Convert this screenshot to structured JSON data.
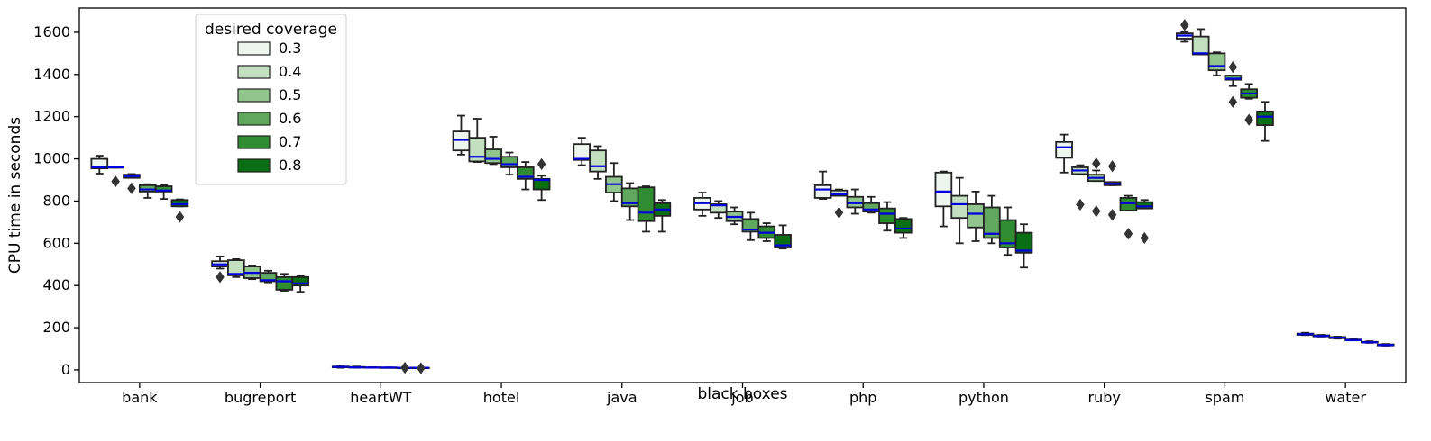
{
  "chart_data": {
    "type": "box",
    "xlabel": "black boxes",
    "ylabel": "CPU time in seconds",
    "ylim": [
      -60,
      1715
    ],
    "yticks": [
      0,
      200,
      400,
      600,
      800,
      1000,
      1200,
      1400,
      1600
    ],
    "categories": [
      "bank",
      "bugreport",
      "heartWT",
      "hotel",
      "java",
      "job",
      "php",
      "python",
      "ruby",
      "spam",
      "water"
    ],
    "legend": {
      "title": "desired coverage",
      "position": "top-left",
      "entries": [
        "0.3",
        "0.4",
        "0.5",
        "0.6",
        "0.7",
        "0.8"
      ],
      "colors": [
        "#eef5ee",
        "#c2dfc0",
        "#92c48e",
        "#5fa85d",
        "#2f8c31",
        "#0a6e14"
      ]
    },
    "median_color": "#0000dd",
    "series": [
      {
        "name": "0.3",
        "boxes": [
          {
            "whislo": 930,
            "q1": 955,
            "med": 960,
            "q3": 1000,
            "whishi": 1015,
            "fliers": []
          },
          {
            "whislo": 480,
            "q1": 490,
            "med": 500,
            "q3": 515,
            "whishi": 538,
            "fliers": [
              440
            ]
          },
          {
            "whislo": 10,
            "q1": 12,
            "med": 14,
            "q3": 16,
            "whishi": 20,
            "fliers": []
          },
          {
            "whislo": 1020,
            "q1": 1040,
            "med": 1090,
            "q3": 1130,
            "whishi": 1205,
            "fliers": []
          },
          {
            "whislo": 970,
            "q1": 995,
            "med": 1000,
            "q3": 1070,
            "whishi": 1100,
            "fliers": []
          },
          {
            "whislo": 730,
            "q1": 760,
            "med": 790,
            "q3": 815,
            "whishi": 840,
            "fliers": []
          },
          {
            "whislo": 810,
            "q1": 815,
            "med": 855,
            "q3": 875,
            "whishi": 940,
            "fliers": []
          },
          {
            "whislo": 680,
            "q1": 775,
            "med": 845,
            "q3": 935,
            "whishi": 940,
            "fliers": []
          },
          {
            "whislo": 935,
            "q1": 1005,
            "med": 1055,
            "q3": 1080,
            "whishi": 1115,
            "fliers": []
          },
          {
            "whislo": 1555,
            "q1": 1570,
            "med": 1585,
            "q3": 1595,
            "whishi": 1600,
            "fliers": [
              1635
            ]
          },
          {
            "whislo": 165,
            "q1": 166,
            "med": 169,
            "q3": 172,
            "whishi": 176,
            "fliers": []
          }
        ]
      },
      {
        "name": "0.4",
        "boxes": [
          {
            "whislo": 958,
            "q1": 958,
            "med": 960,
            "q3": 962,
            "whishi": 962,
            "fliers": [
              893
            ]
          },
          {
            "whislo": 440,
            "q1": 448,
            "med": 455,
            "q3": 520,
            "whishi": 525,
            "fliers": []
          },
          {
            "whislo": 10,
            "q1": 11,
            "med": 12,
            "q3": 14,
            "whishi": 16,
            "fliers": []
          },
          {
            "whislo": 985,
            "q1": 988,
            "med": 1010,
            "q3": 1100,
            "whishi": 1190,
            "fliers": []
          },
          {
            "whislo": 905,
            "q1": 940,
            "med": 965,
            "q3": 1040,
            "whishi": 1060,
            "fliers": []
          },
          {
            "whislo": 720,
            "q1": 745,
            "med": 780,
            "q3": 785,
            "whishi": 800,
            "fliers": []
          },
          {
            "whislo": 825,
            "q1": 825,
            "med": 832,
            "q3": 850,
            "whishi": 855,
            "fliers": [
              745
            ]
          },
          {
            "whislo": 600,
            "q1": 720,
            "med": 785,
            "q3": 825,
            "whishi": 910,
            "fliers": []
          },
          {
            "whislo": 928,
            "q1": 928,
            "med": 945,
            "q3": 960,
            "whishi": 970,
            "fliers": [
              783
            ]
          },
          {
            "whislo": 1495,
            "q1": 1495,
            "med": 1500,
            "q3": 1580,
            "whishi": 1615,
            "fliers": []
          },
          {
            "whislo": 158,
            "q1": 159,
            "med": 161,
            "q3": 164,
            "whishi": 166,
            "fliers": []
          }
        ]
      },
      {
        "name": "0.5",
        "boxes": [
          {
            "whislo": 910,
            "q1": 910,
            "med": 918,
            "q3": 925,
            "whishi": 928,
            "fliers": [
              860
            ]
          },
          {
            "whislo": 430,
            "q1": 435,
            "med": 460,
            "q3": 490,
            "whishi": 495,
            "fliers": []
          },
          {
            "whislo": 10,
            "q1": 10,
            "med": 11,
            "q3": 12,
            "whishi": 13,
            "fliers": []
          },
          {
            "whislo": 975,
            "q1": 980,
            "med": 1000,
            "q3": 1045,
            "whishi": 1105,
            "fliers": []
          },
          {
            "whislo": 800,
            "q1": 840,
            "med": 880,
            "q3": 915,
            "whishi": 980,
            "fliers": []
          },
          {
            "whislo": 690,
            "q1": 705,
            "med": 725,
            "q3": 750,
            "whishi": 770,
            "fliers": []
          },
          {
            "whislo": 740,
            "q1": 770,
            "med": 790,
            "q3": 820,
            "whishi": 855,
            "fliers": []
          },
          {
            "whislo": 610,
            "q1": 675,
            "med": 740,
            "q3": 785,
            "whishi": 845,
            "fliers": []
          },
          {
            "whislo": 895,
            "q1": 895,
            "med": 910,
            "q3": 925,
            "whishi": 945,
            "fliers": [
              752,
              978
            ]
          },
          {
            "whislo": 1395,
            "q1": 1420,
            "med": 1440,
            "q3": 1500,
            "whishi": 1505,
            "fliers": []
          },
          {
            "whislo": 148,
            "q1": 150,
            "med": 153,
            "q3": 156,
            "whishi": 158,
            "fliers": []
          }
        ]
      },
      {
        "name": "0.6",
        "boxes": [
          {
            "whislo": 815,
            "q1": 845,
            "med": 855,
            "q3": 875,
            "whishi": 880,
            "fliers": []
          },
          {
            "whislo": 415,
            "q1": 420,
            "med": 425,
            "q3": 460,
            "whishi": 470,
            "fliers": []
          },
          {
            "whislo": 10,
            "q1": 10,
            "med": 11,
            "q3": 11,
            "whishi": 12,
            "fliers": []
          },
          {
            "whislo": 925,
            "q1": 960,
            "med": 975,
            "q3": 1010,
            "whishi": 1030,
            "fliers": []
          },
          {
            "whislo": 710,
            "q1": 775,
            "med": 790,
            "q3": 860,
            "whishi": 885,
            "fliers": []
          },
          {
            "whislo": 615,
            "q1": 655,
            "med": 665,
            "q3": 715,
            "whishi": 745,
            "fliers": []
          },
          {
            "whislo": 745,
            "q1": 750,
            "med": 760,
            "q3": 790,
            "whishi": 820,
            "fliers": []
          },
          {
            "whislo": 600,
            "q1": 625,
            "med": 645,
            "q3": 770,
            "whishi": 825,
            "fliers": []
          },
          {
            "whislo": 875,
            "q1": 875,
            "med": 882,
            "q3": 890,
            "whishi": 890,
            "fliers": [
              735,
              965
            ]
          },
          {
            "whislo": 1345,
            "q1": 1375,
            "med": 1380,
            "q3": 1395,
            "whishi": 1395,
            "fliers": [
              1270,
              1435
            ]
          },
          {
            "whislo": 140,
            "q1": 140,
            "med": 141,
            "q3": 144,
            "whishi": 146,
            "fliers": []
          }
        ]
      },
      {
        "name": "0.7",
        "boxes": [
          {
            "whislo": 810,
            "q1": 845,
            "med": 850,
            "q3": 870,
            "whishi": 875,
            "fliers": []
          },
          {
            "whislo": 375,
            "q1": 380,
            "med": 420,
            "q3": 440,
            "whishi": 455,
            "fliers": []
          },
          {
            "whislo": 9,
            "q1": 9,
            "med": 10,
            "q3": 10,
            "whishi": 11,
            "fliers": [
              10
            ]
          },
          {
            "whislo": 855,
            "q1": 905,
            "med": 915,
            "q3": 960,
            "whishi": 985,
            "fliers": []
          },
          {
            "whislo": 655,
            "q1": 705,
            "med": 745,
            "q3": 865,
            "whishi": 870,
            "fliers": []
          },
          {
            "whislo": 610,
            "q1": 625,
            "med": 650,
            "q3": 680,
            "whishi": 695,
            "fliers": []
          },
          {
            "whislo": 660,
            "q1": 695,
            "med": 740,
            "q3": 765,
            "whishi": 795,
            "fliers": []
          },
          {
            "whislo": 545,
            "q1": 580,
            "med": 600,
            "q3": 710,
            "whishi": 770,
            "fliers": []
          },
          {
            "whislo": 755,
            "q1": 755,
            "med": 790,
            "q3": 815,
            "whishi": 825,
            "fliers": [
              645
            ]
          },
          {
            "whislo": 1285,
            "q1": 1290,
            "med": 1310,
            "q3": 1330,
            "whishi": 1355,
            "fliers": [
              1185
            ]
          },
          {
            "whislo": 128,
            "q1": 130,
            "med": 131,
            "q3": 133,
            "whishi": 136,
            "fliers": []
          }
        ]
      },
      {
        "name": "0.8",
        "boxes": [
          {
            "whislo": 775,
            "q1": 775,
            "med": 785,
            "q3": 805,
            "whishi": 808,
            "fliers": [
              725
            ]
          },
          {
            "whislo": 370,
            "q1": 400,
            "med": 410,
            "q3": 440,
            "whishi": 445,
            "fliers": []
          },
          {
            "whislo": 9,
            "q1": 9,
            "med": 10,
            "q3": 10,
            "whishi": 10,
            "fliers": [
              8
            ]
          },
          {
            "whislo": 805,
            "q1": 855,
            "med": 900,
            "q3": 905,
            "whishi": 920,
            "fliers": [
              975
            ]
          },
          {
            "whislo": 655,
            "q1": 730,
            "med": 760,
            "q3": 790,
            "whishi": 805,
            "fliers": []
          },
          {
            "whislo": 575,
            "q1": 580,
            "med": 590,
            "q3": 640,
            "whishi": 685,
            "fliers": []
          },
          {
            "whislo": 625,
            "q1": 650,
            "med": 670,
            "q3": 715,
            "whishi": 720,
            "fliers": []
          },
          {
            "whislo": 485,
            "q1": 555,
            "med": 565,
            "q3": 650,
            "whishi": 690,
            "fliers": []
          },
          {
            "whislo": 765,
            "q1": 765,
            "med": 775,
            "q3": 795,
            "whishi": 805,
            "fliers": [
              625
            ]
          },
          {
            "whislo": 1085,
            "q1": 1160,
            "med": 1200,
            "q3": 1225,
            "whishi": 1270,
            "fliers": []
          },
          {
            "whislo": 115,
            "q1": 116,
            "med": 118,
            "q3": 121,
            "whishi": 123,
            "fliers": []
          }
        ]
      }
    ]
  }
}
